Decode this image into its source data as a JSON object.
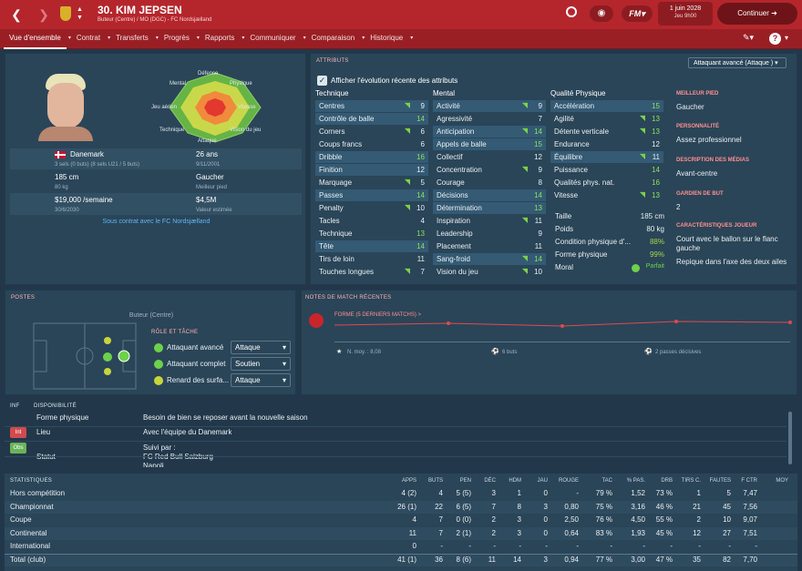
{
  "header": {
    "title": "30. KIM JEPSEN",
    "subtitle": "Buteur (Centre) / MO (DGC) - FC Nordsjælland",
    "date": "1 juin 2028",
    "day": "Jeu 9h00",
    "continue": "Continuer"
  },
  "menu": [
    {
      "label": "Vue d'ensemble",
      "active": true
    },
    {
      "label": "Contrat"
    },
    {
      "label": "Transferts"
    },
    {
      "label": "Progrès"
    },
    {
      "label": "Rapports"
    },
    {
      "label": "Communiquer"
    },
    {
      "label": "Comparaison"
    },
    {
      "label": "Historique"
    }
  ],
  "profile": {
    "nationality": "Danemark",
    "caps": "3 sels (0 buts) (8 sels U21 / 5 buts)",
    "age": "26 ans",
    "dob": "9/11/2001",
    "height": "185 cm",
    "weight": "80 kg",
    "foot": "Gaucher",
    "foot_lbl": "Meilleur pied",
    "wage": "$19,000 /semaine",
    "contract_end": "30/6/2030",
    "value": "$4,5M",
    "value_lbl": "Valeur estimée",
    "status": "Sous contrat avec le FC Nordsjælland",
    "radar": {
      "defense": "Défense",
      "mental": "Mental",
      "physique": "Physique",
      "jeu_aerien": "Jeu aérien",
      "vitesse": "Vitesse",
      "technique": "Technique",
      "vision": "Vision du jeu",
      "attaque": "Attaque"
    }
  },
  "attributes": {
    "title": "Attributs",
    "dropdown": "Attaquant avancé (Attaque )",
    "checkbox": "Afficher l'évolution récente des attributs",
    "cols": [
      "Technique",
      "Mental",
      "Qualité Physique"
    ],
    "technique": [
      [
        "Centres",
        "9",
        true,
        true
      ],
      [
        "Contrôle de balle",
        "14",
        false,
        true
      ],
      [
        "Corners",
        "6",
        true,
        false
      ],
      [
        "Coups francs",
        "6",
        false,
        false
      ],
      [
        "Dribble",
        "16",
        false,
        true
      ],
      [
        "Finition",
        "12",
        false,
        true
      ],
      [
        "Marquage",
        "5",
        true,
        false
      ],
      [
        "Passes",
        "14",
        false,
        true
      ],
      [
        "Penalty",
        "10",
        true,
        false
      ],
      [
        "Tacles",
        "4",
        false,
        false
      ],
      [
        "Technique",
        "13",
        false,
        false
      ],
      [
        "Tête",
        "14",
        false,
        true
      ],
      [
        "Tirs de loin",
        "11",
        false,
        false
      ],
      [
        "Touches longues",
        "7",
        true,
        false
      ]
    ],
    "mental": [
      [
        "Activité",
        "9",
        true,
        true
      ],
      [
        "Agressivité",
        "7",
        false,
        false
      ],
      [
        "Anticipation",
        "14",
        true,
        true
      ],
      [
        "Appels de balle",
        "15",
        false,
        true
      ],
      [
        "Collectif",
        "12",
        false,
        false
      ],
      [
        "Concentration",
        "9",
        true,
        false
      ],
      [
        "Courage",
        "8",
        false,
        false
      ],
      [
        "Décisions",
        "14",
        false,
        true
      ],
      [
        "Détermination",
        "13",
        false,
        true
      ],
      [
        "Inspiration",
        "11",
        true,
        false
      ],
      [
        "Leadership",
        "9",
        false,
        false
      ],
      [
        "Placement",
        "11",
        false,
        false
      ],
      [
        "Sang-froid",
        "14",
        true,
        true
      ],
      [
        "Vision du jeu",
        "10",
        true,
        false
      ]
    ],
    "physique": [
      [
        "Accélération",
        "15",
        false,
        true
      ],
      [
        "Agilité",
        "13",
        true,
        false
      ],
      [
        "Détente verticale",
        "13",
        true,
        false
      ],
      [
        "Endurance",
        "12",
        false,
        false
      ],
      [
        "Équilibre",
        "11",
        true,
        true
      ],
      [
        "Puissance",
        "14",
        false,
        false
      ],
      [
        "Qualités phys. nat.",
        "16",
        false,
        false
      ],
      [
        "Vitesse",
        "13",
        true,
        false
      ]
    ],
    "body": [
      [
        "Taille",
        "185 cm"
      ],
      [
        "Poids",
        "80 kg"
      ],
      [
        "Condition physique d'...",
        "88%"
      ],
      [
        "Forme physique",
        "99%"
      ],
      [
        "Moral",
        "Parfait"
      ]
    ]
  },
  "sidebar": [
    {
      "h": "Meilleur pied",
      "v": "Gaucher"
    },
    {
      "h": "Personnalité",
      "v": "Assez professionnel"
    },
    {
      "h": "Description des médias",
      "v": "Avant-centre"
    },
    {
      "h": "Gardien de but",
      "v": "2"
    },
    {
      "h": "Caractéristiques joueur",
      "v": "Court avec le ballon sur le flanc gauche"
    },
    {
      "h": "",
      "v": "Repique dans l'axe des deux ailes"
    }
  ],
  "postes": {
    "title": "Postes",
    "position": "Buteur (Centre)",
    "role_title": "Rôle et tâche",
    "roles": [
      [
        "Attaquant avancé",
        "Attaque"
      ],
      [
        "Attaquant complet",
        "Soutien"
      ],
      [
        "Renard des surfa...",
        "Attaque"
      ]
    ]
  },
  "notes": {
    "title": "Notes de match récentes",
    "form": "Forme (5 derniers matchs) >",
    "avg": "N. moy. : 8,08",
    "goals": "6 buts",
    "assists": "2 passes décisives"
  },
  "info": {
    "tab1": "Inf",
    "tab2": "Disponibilité",
    "rows": [
      [
        "",
        "Forme physique",
        "Besoin de bien se reposer avant la nouvelle saison"
      ],
      [
        "Int",
        "Lieu",
        "Avec l'équipe du Danemark"
      ],
      [
        "Obs",
        "Statut",
        "Suivi par :\nFC Red Bull Salzburg\nNapoli"
      ]
    ]
  },
  "stats": {
    "title": "Statistiques",
    "cols": [
      "Apps",
      "Buts",
      "Pen",
      "Déc",
      "HdM",
      "Jau",
      "Rouge",
      "Tac",
      "% pas.",
      "Drb",
      "Tirs c.",
      "Fautes",
      "F Ctr",
      "Moy"
    ],
    "rows": [
      [
        "Hors compétition",
        "4 (2)",
        "4",
        "5 (5)",
        "3",
        "1",
        "0",
        "-",
        "79 %",
        "1,52",
        "73 %",
        "1",
        "5",
        "7,47"
      ],
      [
        "Championnat",
        "26 (1)",
        "22",
        "6 (5)",
        "7",
        "8",
        "3",
        "0,80",
        "75 %",
        "3,16",
        "46 %",
        "21",
        "45",
        "7,56"
      ],
      [
        "Coupe",
        "4",
        "7",
        "0 (0)",
        "2",
        "3",
        "0",
        "2,50",
        "76 %",
        "4,50",
        "55 %",
        "2",
        "10",
        "9,07"
      ],
      [
        "Continental",
        "11",
        "7",
        "2 (1)",
        "2",
        "3",
        "0",
        "0,64",
        "83 %",
        "1,93",
        "45 %",
        "12",
        "27",
        "7,51"
      ],
      [
        "International",
        "0",
        "-",
        "-",
        "-",
        "-",
        "-",
        "-",
        "-",
        "-",
        "-",
        "-",
        "-",
        "-"
      ],
      [
        "Total (club)",
        "41 (1)",
        "36",
        "8 (6)",
        "11",
        "14",
        "3",
        "0,94",
        "77 %",
        "3,00",
        "47 %",
        "35",
        "82",
        "7,70"
      ]
    ]
  }
}
